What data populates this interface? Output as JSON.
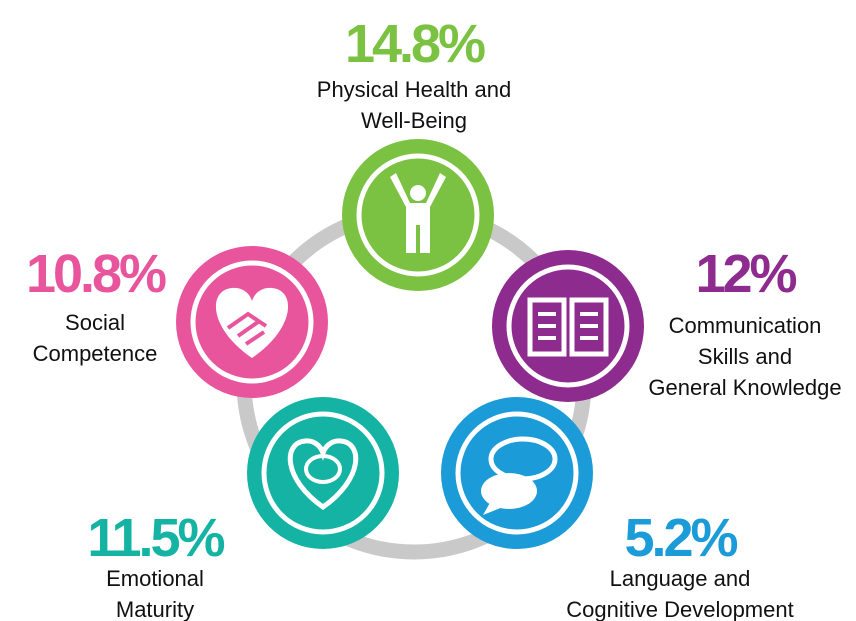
{
  "nodes": [
    {
      "percent": "14.8%",
      "label": [
        "Physical Health and",
        "Well-Being"
      ],
      "color": "#7cc242"
    },
    {
      "percent": "12%",
      "label": [
        "Communication",
        "Skills and",
        "General Knowledge"
      ],
      "color": "#8e2b8e"
    },
    {
      "percent": "5.2%",
      "label": [
        "Language and",
        "Cognitive Development"
      ],
      "color": "#1b9bd7"
    },
    {
      "percent": "11.5%",
      "label": [
        "Emotional",
        "Maturity"
      ],
      "color": "#14b3a3"
    },
    {
      "percent": "10.8%",
      "label": [
        "Social",
        "Competence"
      ],
      "color": "#e8559c"
    }
  ]
}
